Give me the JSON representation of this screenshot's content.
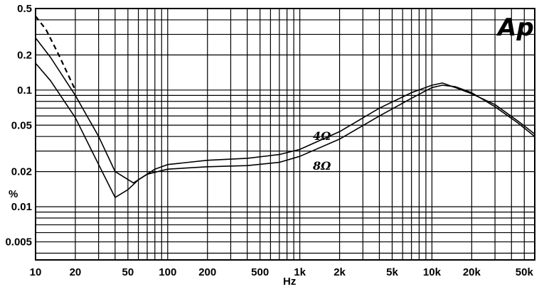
{
  "chart_data": {
    "type": "line",
    "title": "",
    "xlabel": "Hz",
    "ylabel": "%",
    "x_scale": "log",
    "y_scale": "log",
    "xlim": [
      10,
      60000
    ],
    "ylim": [
      0.0035,
      0.5
    ],
    "grid": true,
    "x_ticks": [
      {
        "value": 10,
        "label": "10"
      },
      {
        "value": 20,
        "label": "20"
      },
      {
        "value": 50,
        "label": "50"
      },
      {
        "value": 100,
        "label": "100"
      },
      {
        "value": 200,
        "label": "200"
      },
      {
        "value": 500,
        "label": "500"
      },
      {
        "value": 1000,
        "label": "1k"
      },
      {
        "value": 2000,
        "label": "2k"
      },
      {
        "value": 5000,
        "label": "5k"
      },
      {
        "value": 10000,
        "label": "10k"
      },
      {
        "value": 20000,
        "label": "20k"
      },
      {
        "value": 50000,
        "label": "50k"
      }
    ],
    "y_ticks": [
      {
        "value": 0.5,
        "label": "0.5"
      },
      {
        "value": 0.2,
        "label": "0.2"
      },
      {
        "value": 0.1,
        "label": "0.1"
      },
      {
        "value": 0.05,
        "label": "0.05"
      },
      {
        "value": 0.02,
        "label": "0.02"
      },
      {
        "value": 0.01,
        "label": "0.01"
      },
      {
        "value": 0.005,
        "label": "0.005"
      }
    ],
    "series": [
      {
        "name": "4Ω",
        "style": "solid",
        "points": [
          [
            10,
            0.28
          ],
          [
            13,
            0.19
          ],
          [
            20,
            0.09
          ],
          [
            30,
            0.04
          ],
          [
            40,
            0.02
          ],
          [
            55,
            0.016
          ],
          [
            70,
            0.019
          ],
          [
            100,
            0.021
          ],
          [
            200,
            0.022
          ],
          [
            400,
            0.0225
          ],
          [
            700,
            0.024
          ],
          [
            1000,
            0.027
          ],
          [
            2000,
            0.038
          ],
          [
            4000,
            0.06
          ],
          [
            7000,
            0.085
          ],
          [
            10000,
            0.105
          ],
          [
            12000,
            0.11
          ],
          [
            15000,
            0.107
          ],
          [
            20000,
            0.095
          ],
          [
            30000,
            0.072
          ],
          [
            45000,
            0.052
          ],
          [
            60000,
            0.04
          ]
        ]
      },
      {
        "name": "8Ω",
        "style": "solid",
        "points": [
          [
            10,
            0.17
          ],
          [
            13,
            0.12
          ],
          [
            20,
            0.058
          ],
          [
            30,
            0.023
          ],
          [
            40,
            0.012
          ],
          [
            50,
            0.014
          ],
          [
            60,
            0.017
          ],
          [
            80,
            0.021
          ],
          [
            100,
            0.023
          ],
          [
            200,
            0.025
          ],
          [
            400,
            0.026
          ],
          [
            700,
            0.028
          ],
          [
            1000,
            0.031
          ],
          [
            2000,
            0.044
          ],
          [
            4000,
            0.07
          ],
          [
            7000,
            0.095
          ],
          [
            10000,
            0.11
          ],
          [
            12000,
            0.115
          ],
          [
            15000,
            0.105
          ],
          [
            20000,
            0.093
          ],
          [
            30000,
            0.075
          ],
          [
            45000,
            0.054
          ],
          [
            60000,
            0.042
          ]
        ]
      },
      {
        "name": "",
        "style": "dashed",
        "points": [
          [
            10,
            0.43
          ],
          [
            12,
            0.33
          ],
          [
            15,
            0.2
          ],
          [
            20,
            0.1
          ]
        ]
      }
    ],
    "annotations": [
      {
        "text": "4Ω",
        "series": "4Ω"
      },
      {
        "text": "8Ω",
        "series": "8Ω"
      }
    ],
    "logo": "Ap"
  }
}
